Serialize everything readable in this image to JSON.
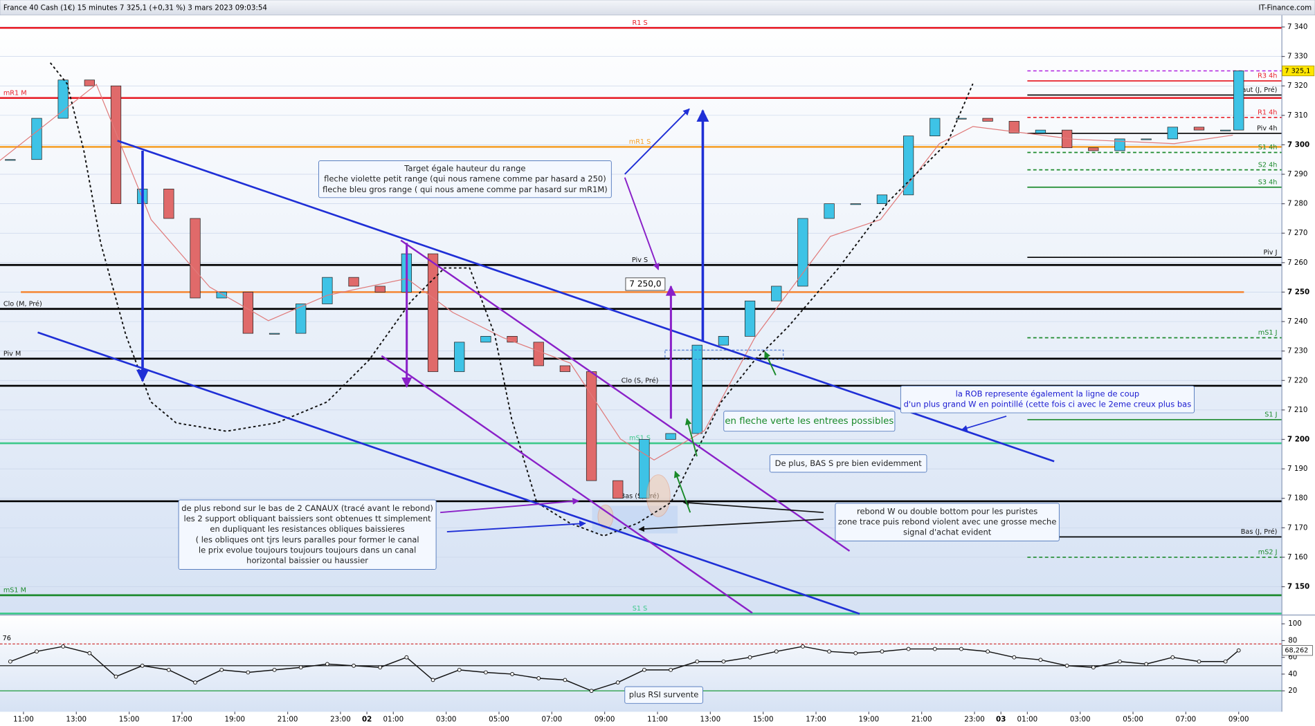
{
  "header": {
    "title": "France 40 Cash (1€) 15 minutes 7 325,1 (+0,31 %) 3 mars 2023 09:03:54",
    "brand": "IT-Finance.com"
  },
  "chart_data": [
    {
      "type": "candlestick",
      "up_color": "#3ec3e6",
      "down_color": "#e06a6a",
      "grid": true,
      "x": [
        -0.5,
        0.5,
        1.5,
        2.5,
        3.5,
        4.5,
        5.5,
        6.5,
        7.5,
        8.5,
        9.5,
        10.5,
        11.5,
        12.5,
        13.5,
        14.5,
        15.5,
        16.5,
        17.5,
        18.5,
        19.5,
        20.5,
        21.5,
        22.5,
        23.5,
        24.5,
        25.5,
        26.5,
        27.5,
        28.5,
        29.5,
        30.5,
        31.5,
        32.5,
        33.5,
        34.5,
        35.5,
        36.5,
        37.5,
        38.5,
        39.5,
        40.5,
        41.5,
        42.5,
        43.5,
        44.5,
        45.5,
        46
      ],
      "close": [
        7295,
        7309,
        7322,
        7320,
        7280,
        7285,
        7275,
        7248,
        7250,
        7236,
        7236,
        7246,
        7255,
        7252,
        7250,
        7263,
        7223,
        7233,
        7235,
        7233,
        7225,
        7223,
        7186,
        7180,
        7200,
        7202,
        7232,
        7235,
        7247,
        7252,
        7275,
        7280,
        7280,
        7283,
        7303,
        7309,
        7309,
        7308,
        7304,
        7305,
        7299,
        7298,
        7302,
        7302,
        7306,
        7305,
        7305,
        7325.1
      ],
      "ma": {
        "color": "#e07a7a",
        "x": [
          -0.89,
          2.76,
          4.83,
          7.05,
          9.27,
          11.49,
          14.51,
          16.25,
          18.16,
          20.7,
          22.6,
          23.87,
          25.78,
          27.68,
          28.63,
          30.54,
          32.44,
          34.67,
          35.94,
          39.75,
          43.56,
          45.78
        ],
        "values": [
          7294.7,
          7320.5,
          7274.6,
          7251.7,
          7240.3,
          7248.9,
          7254.6,
          7243.1,
          7234.5,
          7225.9,
          7200.1,
          7193.0,
          7203.0,
          7234.5,
          7246.0,
          7268.9,
          7274.6,
          7300.4,
          7306.2,
          7301.9,
          7300.4,
          7303.3
        ]
      },
      "xlim": [
        -0.889,
        47.619
      ],
      "xticks": [
        {
          "value": 0,
          "label": "11:00"
        },
        {
          "value": 2,
          "label": "13:00"
        },
        {
          "value": 4,
          "label": "15:00"
        },
        {
          "value": 6,
          "label": "17:00"
        },
        {
          "value": 8,
          "label": "19:00"
        },
        {
          "value": 10,
          "label": "21:00"
        },
        {
          "value": 12,
          "label": "23:00"
        },
        {
          "value": 13,
          "label": "02"
        },
        {
          "value": 14,
          "label": "01:00"
        },
        {
          "value": 16,
          "label": "03:00"
        },
        {
          "value": 18,
          "label": "05:00"
        },
        {
          "value": 20,
          "label": "07:00"
        },
        {
          "value": 22,
          "label": "09:00"
        },
        {
          "value": 24,
          "label": "11:00"
        },
        {
          "value": 26,
          "label": "13:00"
        },
        {
          "value": 28,
          "label": "15:00"
        },
        {
          "value": 30,
          "label": "17:00"
        },
        {
          "value": 32,
          "label": "19:00"
        },
        {
          "value": 34,
          "label": "21:00"
        },
        {
          "value": 36,
          "label": "23:00"
        },
        {
          "value": 37,
          "label": "03"
        },
        {
          "value": 38,
          "label": "01:00"
        },
        {
          "value": 40,
          "label": "03:00"
        },
        {
          "value": 42,
          "label": "05:00"
        },
        {
          "value": 44,
          "label": "07:00"
        },
        {
          "value": 46,
          "label": "09:00"
        }
      ],
      "ylim": [
        7140.8,
        7342.9
      ],
      "yticks": [
        {
          "value": 7340,
          "label": "7 340"
        },
        {
          "value": 7330,
          "label": "7 330"
        },
        {
          "value": 7320,
          "label": "7 320"
        },
        {
          "value": 7310,
          "label": "7 310"
        },
        {
          "value": 7300,
          "label": "7 300"
        },
        {
          "value": 7290,
          "label": "7 290"
        },
        {
          "value": 7280,
          "label": "7 280"
        },
        {
          "value": 7270,
          "label": "7 270"
        },
        {
          "value": 7260,
          "label": "7 260"
        },
        {
          "value": 7250,
          "label": "7 250"
        },
        {
          "value": 7240,
          "label": "7 240"
        },
        {
          "value": 7230,
          "label": "7 230"
        },
        {
          "value": 7220,
          "label": "7 220"
        },
        {
          "value": 7210,
          "label": "7 210"
        },
        {
          "value": 7200,
          "label": "7 200"
        },
        {
          "value": 7190,
          "label": "7 190"
        },
        {
          "value": 7180,
          "label": "7 180"
        },
        {
          "value": 7170,
          "label": "7 170"
        },
        {
          "value": 7160,
          "label": "7 160"
        },
        {
          "value": 7150,
          "label": "7 150"
        }
      ],
      "last_price": {
        "value": 7325.1,
        "label": "7 325,1",
        "color": "#b020e0",
        "from": 38
      },
      "levels": [
        {
          "name": "R1 S",
          "value": 7339.7,
          "color": "#e8202a",
          "label_pos": "center"
        },
        {
          "name": "mR1 M",
          "value": 7315.9,
          "color": "#e8202a",
          "label_pos": "left"
        },
        {
          "name": "mR1 S",
          "value": 7299.3,
          "color": "#f5a02a",
          "label_pos": "center"
        },
        {
          "name": "Piv S",
          "value": 7259.2,
          "color": "#000000",
          "label_pos": "center"
        },
        {
          "name": "7 250,0",
          "value": 7250,
          "color": "#f58a3a",
          "label_pos": "box",
          "from": -0.1,
          "to": 46.2
        },
        {
          "name": "Clo (M, Pré)",
          "value": 7244.3,
          "color": "#000000",
          "label_pos": "left"
        },
        {
          "name": "Piv M",
          "value": 7227.4,
          "color": "#000000",
          "label_pos": "left"
        },
        {
          "name": "Clo (S, Pré)",
          "value": 7218.2,
          "color": "#000000",
          "label_pos": "center"
        },
        {
          "name": "mS1 S",
          "value": 7198.7,
          "color": "#3cc88a",
          "label_pos": "center"
        },
        {
          "name": "Bas (S, Pré)",
          "value": 7179.0,
          "color": "#000000",
          "label_pos": "center"
        },
        {
          "name": "mS1 M",
          "value": 7147.1,
          "color": "#1c8a2c",
          "label_pos": "left"
        },
        {
          "name": "S1 S",
          "value": 7140.9,
          "color": "#3cc88a",
          "label_pos": "center"
        },
        {
          "name": "R3 4h",
          "value": 7321.7,
          "color": "#e8202a",
          "label_pos": "right",
          "from": 38
        },
        {
          "name": "Haut (J, Pré)",
          "value": 7316.9,
          "color": "#000000",
          "label_pos": "right",
          "from": 38
        },
        {
          "name": "R1 4h",
          "value": 7309.3,
          "color": "#e8202a",
          "label_pos": "right",
          "from": 38,
          "style": "dashed"
        },
        {
          "name": "Piv 4h",
          "value": 7303.9,
          "color": "#000000",
          "label_pos": "right",
          "from": 38
        },
        {
          "name": "S1 4h",
          "value": 7297.4,
          "color": "#1c8a2c",
          "label_pos": "right",
          "from": 38,
          "style": "dashed"
        },
        {
          "name": "S2 4h",
          "value": 7291.5,
          "color": "#1c8a2c",
          "label_pos": "right",
          "from": 38,
          "style": "dashed"
        },
        {
          "name": "S3 4h",
          "value": 7285.6,
          "color": "#1c8a2c",
          "label_pos": "right",
          "from": 38
        },
        {
          "name": "Piv J",
          "value": 7261.8,
          "color": "#000000",
          "label_pos": "right",
          "from": 38
        },
        {
          "name": "mS1 J",
          "value": 7234.5,
          "color": "#1c8a2c",
          "label_pos": "right",
          "from": 38,
          "style": "dashed"
        },
        {
          "name": "S1 J",
          "value": 7206.7,
          "color": "#1c8a2c",
          "label_pos": "right",
          "from": 38
        },
        {
          "name": "Bas (J, Pré)",
          "value": 7166.9,
          "color": "#000000",
          "label_pos": "right",
          "from": 38
        },
        {
          "name": "mS2 J",
          "value": 7160.0,
          "color": "#1c8a2c",
          "label_pos": "right",
          "from": 38,
          "style": "dashed"
        }
      ]
    },
    {
      "type": "line",
      "color": "#111111",
      "brand": "IT-Finance.com",
      "x": [
        -0.5,
        0.5,
        1.5,
        2.5,
        3.5,
        4.5,
        5.5,
        6.5,
        7.5,
        8.5,
        9.5,
        10.5,
        11.5,
        12.5,
        13.5,
        14.5,
        15.5,
        16.5,
        17.5,
        18.5,
        19.5,
        20.5,
        21.5,
        22.5,
        23.5,
        24.5,
        25.5,
        26.5,
        27.5,
        28.5,
        29.5,
        30.5,
        31.5,
        32.5,
        33.5,
        34.5,
        35.5,
        36.5,
        37.5,
        38.5,
        39.5,
        40.5,
        41.5,
        42.5,
        43.5,
        44.5,
        45.5,
        46
      ],
      "values": [
        55,
        67,
        73,
        65,
        37,
        50,
        45,
        30,
        45,
        42,
        45,
        48,
        52,
        50,
        48,
        60,
        33,
        45,
        42,
        40,
        35,
        33,
        20,
        30,
        45,
        45,
        55,
        55,
        60,
        67,
        73,
        67,
        65,
        67,
        70,
        70,
        70,
        67,
        60,
        57,
        50,
        48,
        55,
        52,
        60,
        55,
        55,
        68.262
      ],
      "last_value": {
        "value": 68.262,
        "label": "68,262"
      },
      "xlim": [
        -0.889,
        47.619
      ],
      "ylim": [
        -17,
        110
      ],
      "yticks": [
        20,
        40,
        60,
        80,
        100
      ],
      "levels": [
        {
          "value": 76,
          "color": "#cc2020",
          "style": "dashed"
        },
        {
          "value": 50,
          "color": "#000000"
        },
        {
          "value": 20,
          "color": "#1c9a3c"
        }
      ]
    }
  ],
  "annotations": [
    {
      "color": "#222222",
      "lines": [
        "Target égale hauteur du range",
        "fleche violette petit range (qui nous ramene comme par hasard a 250)",
        "fleche bleu gros range ( qui nous amene comme par hasard sur mR1M)"
      ]
    },
    {
      "color": "#1a1ad0",
      "lines": [
        "la ROB represente également la ligne de coup",
        "d'un plus grand W en pointillé (cette fois ci avec le 2eme creux plus bas"
      ]
    },
    {
      "color": "#1a8a2a",
      "lines": [
        "en fleche verte les entrees possibles"
      ]
    },
    {
      "color": "#222222",
      "lines": [
        "De plus, BAS S pre bien evidemment"
      ]
    },
    {
      "color": "#222222",
      "lines": [
        "rebond W ou double bottom pour les puristes",
        "zone trace puis rebond violent avec une grosse meche",
        "signal d'achat evident"
      ]
    },
    {
      "color": "#222222",
      "lines": [
        "de plus rebond sur le bas de 2 CANAUX (tracé avant le rebond)",
        "les 2 support obliquant baissiers  sont obtenues tt simplement",
        "en dupliquant les resistances obliques baissieres",
        "( les obliques ont tjrs leurs paralles pour former le canal",
        "le prix evolue toujours toujours toujours dans un canal",
        "horizontal baissier ou haussier"
      ]
    },
    {
      "color": "#222222",
      "lines": [
        "plus RSI survente"
      ]
    }
  ]
}
